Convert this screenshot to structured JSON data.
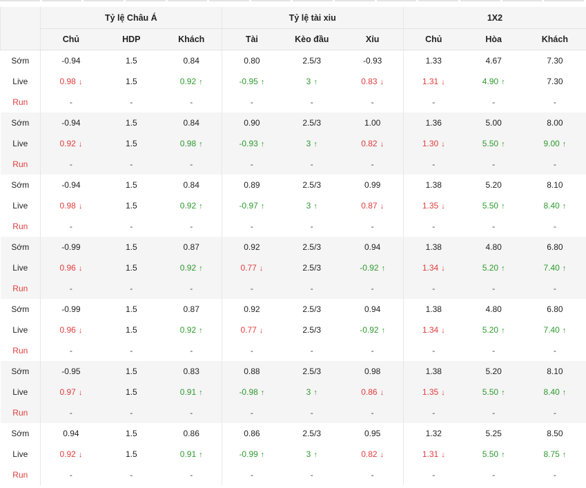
{
  "groups": [
    "Tỷ lệ Châu Á",
    "Tỷ lệ tài xiu",
    "1X2"
  ],
  "subheaders": [
    "Chủ",
    "HDP",
    "Khách",
    "Tài",
    "Kèo đầu",
    "Xỉu",
    "Chủ",
    "Hòa",
    "Khách"
  ],
  "colors": {
    "down": "#e03c3c",
    "up": "#2e9a2e",
    "shade": "#f5f5f5"
  },
  "icons": {
    "down": "down-arrow-icon",
    "up": "up-arrow-icon"
  },
  "blocks": [
    {
      "rows": [
        {
          "label": "Sớm",
          "cells": [
            {
              "v": "-0.94"
            },
            {
              "v": "1.5"
            },
            {
              "v": "0.84"
            },
            {
              "v": "0.80"
            },
            {
              "v": "2.5/3"
            },
            {
              "v": "-0.93"
            },
            {
              "v": "1.33"
            },
            {
              "v": "4.67"
            },
            {
              "v": "7.30"
            }
          ]
        },
        {
          "label": "Live",
          "cells": [
            {
              "v": "0.98",
              "t": "down"
            },
            {
              "v": "1.5"
            },
            {
              "v": "0.92",
              "t": "up"
            },
            {
              "v": "-0.95",
              "t": "up"
            },
            {
              "v": "3",
              "t": "up"
            },
            {
              "v": "0.83",
              "t": "down"
            },
            {
              "v": "1.31",
              "t": "down"
            },
            {
              "v": "4.90",
              "t": "up"
            },
            {
              "v": "7.30"
            }
          ]
        },
        {
          "label": "Run",
          "cells": [
            {
              "v": "-"
            },
            {
              "v": "-"
            },
            {
              "v": "-"
            },
            {
              "v": "-"
            },
            {
              "v": "-"
            },
            {
              "v": "-"
            },
            {
              "v": "-"
            },
            {
              "v": "-"
            },
            {
              "v": "-"
            }
          ]
        }
      ]
    },
    {
      "rows": [
        {
          "label": "Sớm",
          "cells": [
            {
              "v": "-0.94"
            },
            {
              "v": "1.5"
            },
            {
              "v": "0.84"
            },
            {
              "v": "0.90"
            },
            {
              "v": "2.5/3"
            },
            {
              "v": "1.00"
            },
            {
              "v": "1.36"
            },
            {
              "v": "5.00"
            },
            {
              "v": "8.00"
            }
          ]
        },
        {
          "label": "Live",
          "cells": [
            {
              "v": "0.92",
              "t": "down"
            },
            {
              "v": "1.5"
            },
            {
              "v": "0.98",
              "t": "up"
            },
            {
              "v": "-0.93",
              "t": "up"
            },
            {
              "v": "3",
              "t": "up"
            },
            {
              "v": "0.82",
              "t": "down"
            },
            {
              "v": "1.30",
              "t": "down"
            },
            {
              "v": "5.50",
              "t": "up"
            },
            {
              "v": "9.00",
              "t": "up"
            }
          ]
        },
        {
          "label": "Run",
          "cells": [
            {
              "v": "-"
            },
            {
              "v": "-"
            },
            {
              "v": "-"
            },
            {
              "v": "-"
            },
            {
              "v": "-"
            },
            {
              "v": "-"
            },
            {
              "v": "-"
            },
            {
              "v": "-"
            },
            {
              "v": "-"
            }
          ]
        }
      ]
    },
    {
      "rows": [
        {
          "label": "Sớm",
          "cells": [
            {
              "v": "-0.94"
            },
            {
              "v": "1.5"
            },
            {
              "v": "0.84"
            },
            {
              "v": "0.89"
            },
            {
              "v": "2.5/3"
            },
            {
              "v": "0.99"
            },
            {
              "v": "1.38"
            },
            {
              "v": "5.20"
            },
            {
              "v": "8.10"
            }
          ]
        },
        {
          "label": "Live",
          "cells": [
            {
              "v": "0.98",
              "t": "down"
            },
            {
              "v": "1.5"
            },
            {
              "v": "0.92",
              "t": "up"
            },
            {
              "v": "-0.97",
              "t": "up"
            },
            {
              "v": "3",
              "t": "up"
            },
            {
              "v": "0.87",
              "t": "down"
            },
            {
              "v": "1.35",
              "t": "down"
            },
            {
              "v": "5.50",
              "t": "up"
            },
            {
              "v": "8.40",
              "t": "up"
            }
          ]
        },
        {
          "label": "Run",
          "cells": [
            {
              "v": "-"
            },
            {
              "v": "-"
            },
            {
              "v": "-"
            },
            {
              "v": "-"
            },
            {
              "v": "-"
            },
            {
              "v": "-"
            },
            {
              "v": "-"
            },
            {
              "v": "-"
            },
            {
              "v": "-"
            }
          ]
        }
      ]
    },
    {
      "rows": [
        {
          "label": "Sớm",
          "cells": [
            {
              "v": "-0.99"
            },
            {
              "v": "1.5"
            },
            {
              "v": "0.87"
            },
            {
              "v": "0.92"
            },
            {
              "v": "2.5/3"
            },
            {
              "v": "0.94"
            },
            {
              "v": "1.38"
            },
            {
              "v": "4.80"
            },
            {
              "v": "6.80"
            }
          ]
        },
        {
          "label": "Live",
          "cells": [
            {
              "v": "0.96",
              "t": "down"
            },
            {
              "v": "1.5"
            },
            {
              "v": "0.92",
              "t": "up"
            },
            {
              "v": "0.77",
              "t": "down"
            },
            {
              "v": "2.5/3"
            },
            {
              "v": "-0.92",
              "t": "up"
            },
            {
              "v": "1.34",
              "t": "down"
            },
            {
              "v": "5.20",
              "t": "up"
            },
            {
              "v": "7.40",
              "t": "up"
            }
          ]
        },
        {
          "label": "Run",
          "cells": [
            {
              "v": "-"
            },
            {
              "v": "-"
            },
            {
              "v": "-"
            },
            {
              "v": "-"
            },
            {
              "v": "-"
            },
            {
              "v": "-"
            },
            {
              "v": "-"
            },
            {
              "v": "-"
            },
            {
              "v": "-"
            }
          ]
        }
      ]
    },
    {
      "rows": [
        {
          "label": "Sớm",
          "cells": [
            {
              "v": "-0.99"
            },
            {
              "v": "1.5"
            },
            {
              "v": "0.87"
            },
            {
              "v": "0.92"
            },
            {
              "v": "2.5/3"
            },
            {
              "v": "0.94"
            },
            {
              "v": "1.38"
            },
            {
              "v": "4.80"
            },
            {
              "v": "6.80"
            }
          ]
        },
        {
          "label": "Live",
          "cells": [
            {
              "v": "0.96",
              "t": "down"
            },
            {
              "v": "1.5"
            },
            {
              "v": "0.92",
              "t": "up"
            },
            {
              "v": "0.77",
              "t": "down"
            },
            {
              "v": "2.5/3"
            },
            {
              "v": "-0.92",
              "t": "up"
            },
            {
              "v": "1.34",
              "t": "down"
            },
            {
              "v": "5.20",
              "t": "up"
            },
            {
              "v": "7.40",
              "t": "up"
            }
          ]
        },
        {
          "label": "Run",
          "cells": [
            {
              "v": "-"
            },
            {
              "v": "-"
            },
            {
              "v": "-"
            },
            {
              "v": "-"
            },
            {
              "v": "-"
            },
            {
              "v": "-"
            },
            {
              "v": "-"
            },
            {
              "v": "-"
            },
            {
              "v": "-"
            }
          ]
        }
      ]
    },
    {
      "rows": [
        {
          "label": "Sớm",
          "cells": [
            {
              "v": "-0.95"
            },
            {
              "v": "1.5"
            },
            {
              "v": "0.83"
            },
            {
              "v": "0.88"
            },
            {
              "v": "2.5/3"
            },
            {
              "v": "0.98"
            },
            {
              "v": "1.38"
            },
            {
              "v": "5.20"
            },
            {
              "v": "8.10"
            }
          ]
        },
        {
          "label": "Live",
          "cells": [
            {
              "v": "0.97",
              "t": "down"
            },
            {
              "v": "1.5"
            },
            {
              "v": "0.91",
              "t": "up"
            },
            {
              "v": "-0.98",
              "t": "up"
            },
            {
              "v": "3",
              "t": "up"
            },
            {
              "v": "0.86",
              "t": "down"
            },
            {
              "v": "1.35",
              "t": "down"
            },
            {
              "v": "5.50",
              "t": "up"
            },
            {
              "v": "8.40",
              "t": "up"
            }
          ]
        },
        {
          "label": "Run",
          "cells": [
            {
              "v": "-"
            },
            {
              "v": "-"
            },
            {
              "v": "-"
            },
            {
              "v": "-"
            },
            {
              "v": "-"
            },
            {
              "v": "-"
            },
            {
              "v": "-"
            },
            {
              "v": "-"
            },
            {
              "v": "-"
            }
          ]
        }
      ]
    },
    {
      "rows": [
        {
          "label": "Sớm",
          "cells": [
            {
              "v": "0.94"
            },
            {
              "v": "1.5"
            },
            {
              "v": "0.86"
            },
            {
              "v": "0.86"
            },
            {
              "v": "2.5/3"
            },
            {
              "v": "0.95"
            },
            {
              "v": "1.32"
            },
            {
              "v": "5.25"
            },
            {
              "v": "8.50"
            }
          ]
        },
        {
          "label": "Live",
          "cells": [
            {
              "v": "0.92",
              "t": "down"
            },
            {
              "v": "1.5"
            },
            {
              "v": "0.91",
              "t": "up"
            },
            {
              "v": "-0.99",
              "t": "up"
            },
            {
              "v": "3",
              "t": "up"
            },
            {
              "v": "0.82",
              "t": "down"
            },
            {
              "v": "1.31",
              "t": "down"
            },
            {
              "v": "5.50",
              "t": "up"
            },
            {
              "v": "8.75",
              "t": "up"
            }
          ]
        },
        {
          "label": "Run",
          "cells": [
            {
              "v": "-"
            },
            {
              "v": "-"
            },
            {
              "v": "-"
            },
            {
              "v": "-"
            },
            {
              "v": "-"
            },
            {
              "v": "-"
            },
            {
              "v": "-"
            },
            {
              "v": "-"
            },
            {
              "v": "-"
            }
          ]
        }
      ]
    }
  ]
}
